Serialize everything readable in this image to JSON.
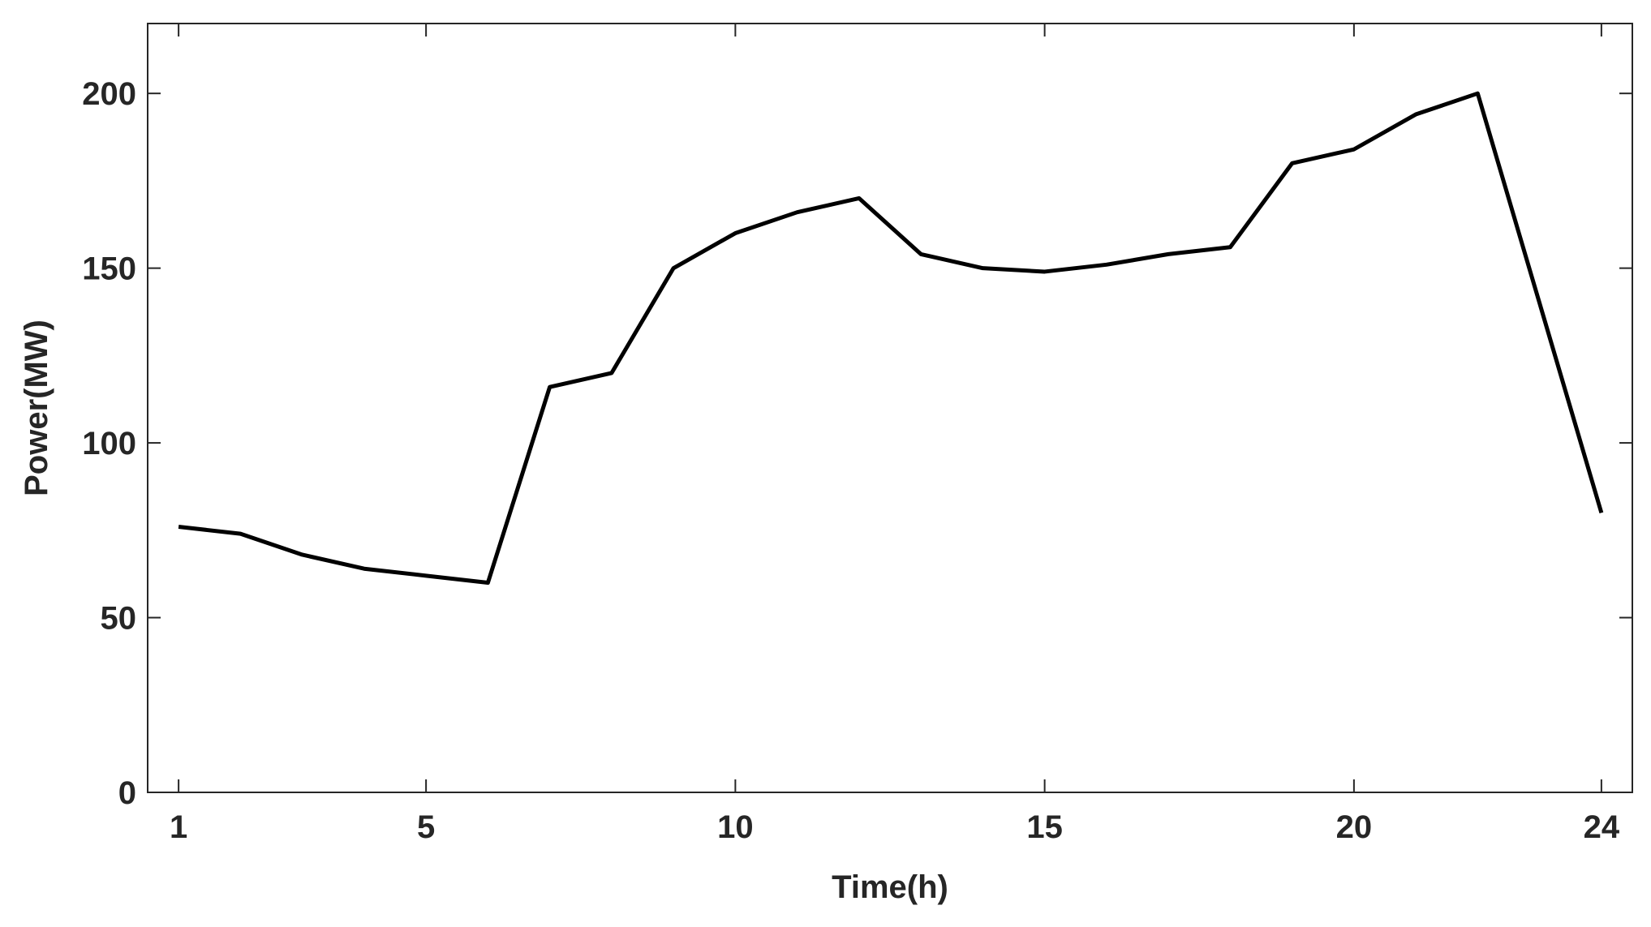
{
  "chart_data": {
    "type": "line",
    "x_label": "Time(h)",
    "y_label": "Power(MW)",
    "x": [
      1,
      2,
      3,
      4,
      5,
      6,
      7,
      8,
      9,
      10,
      11,
      12,
      13,
      14,
      15,
      16,
      17,
      18,
      19,
      20,
      21,
      22,
      23,
      24
    ],
    "series": [
      {
        "color": "#000000",
        "values": [
          76,
          74,
          68,
          64,
          62,
          60,
          116,
          120,
          150,
          160,
          166,
          170,
          154,
          150,
          149,
          151,
          154,
          156,
          180,
          184,
          194,
          200,
          140,
          80
        ]
      }
    ],
    "xlim": [
      0.5,
      24.5
    ],
    "ylim": [
      0,
      220
    ],
    "xticks": [
      1,
      5,
      10,
      15,
      20,
      24
    ],
    "yticks": [
      0,
      50,
      100,
      150,
      200
    ]
  }
}
